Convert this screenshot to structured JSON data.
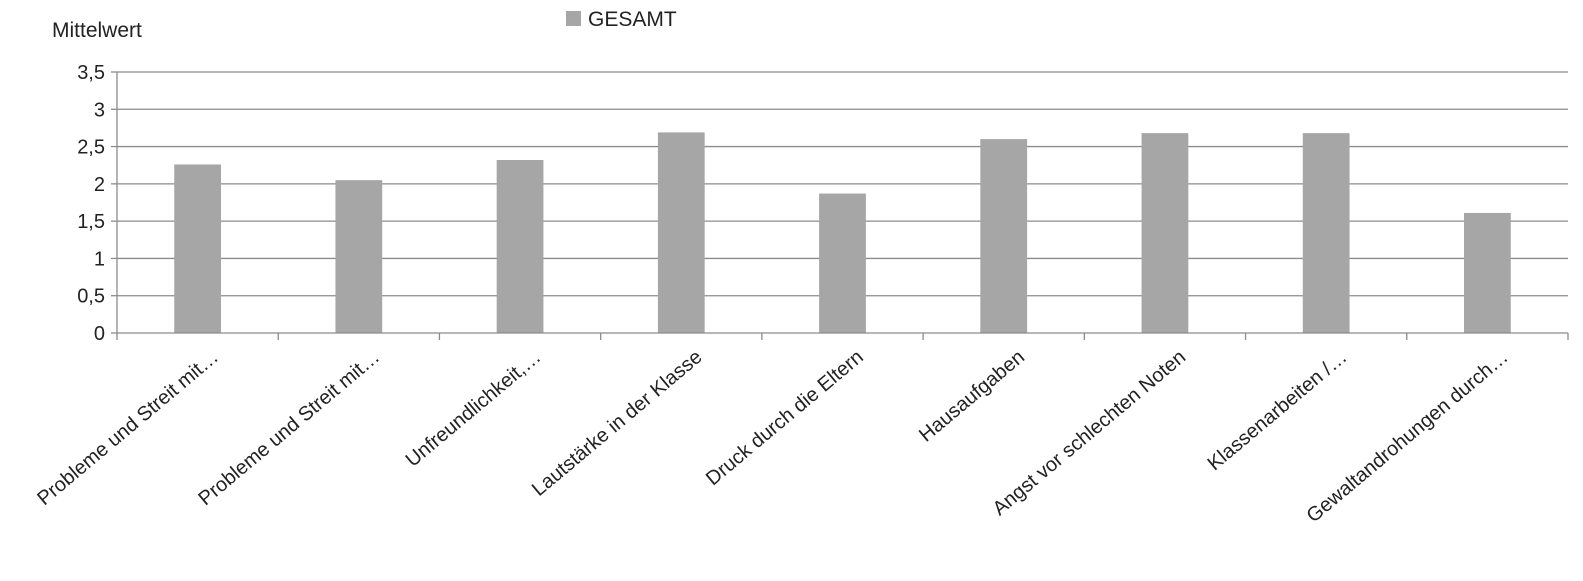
{
  "chart_data": {
    "type": "bar",
    "ylabel": "Mittelwert",
    "ylim": [
      0,
      3.5
    ],
    "yticks": [
      "0",
      "0,5",
      "1",
      "1,5",
      "2",
      "2,5",
      "3",
      "3,5"
    ],
    "grid": true,
    "legend_position": "top-center",
    "categories": [
      "Probleme und Streit mit…",
      "Probleme und Streit mit…",
      "Unfreundlichkeit,…",
      "Lautstärke in der Klasse",
      "Druck durch die Eltern",
      "Hausaufgaben",
      "Angst vor schlechten Noten",
      "Klassenarbeiten /…",
      "Gewaltandrohungen durch…"
    ],
    "series": [
      {
        "name": "GESAMT",
        "color": "#a6a6a6",
        "values": [
          2.26,
          2.05,
          2.32,
          2.69,
          1.87,
          2.6,
          2.68,
          2.68,
          1.61
        ]
      }
    ]
  }
}
